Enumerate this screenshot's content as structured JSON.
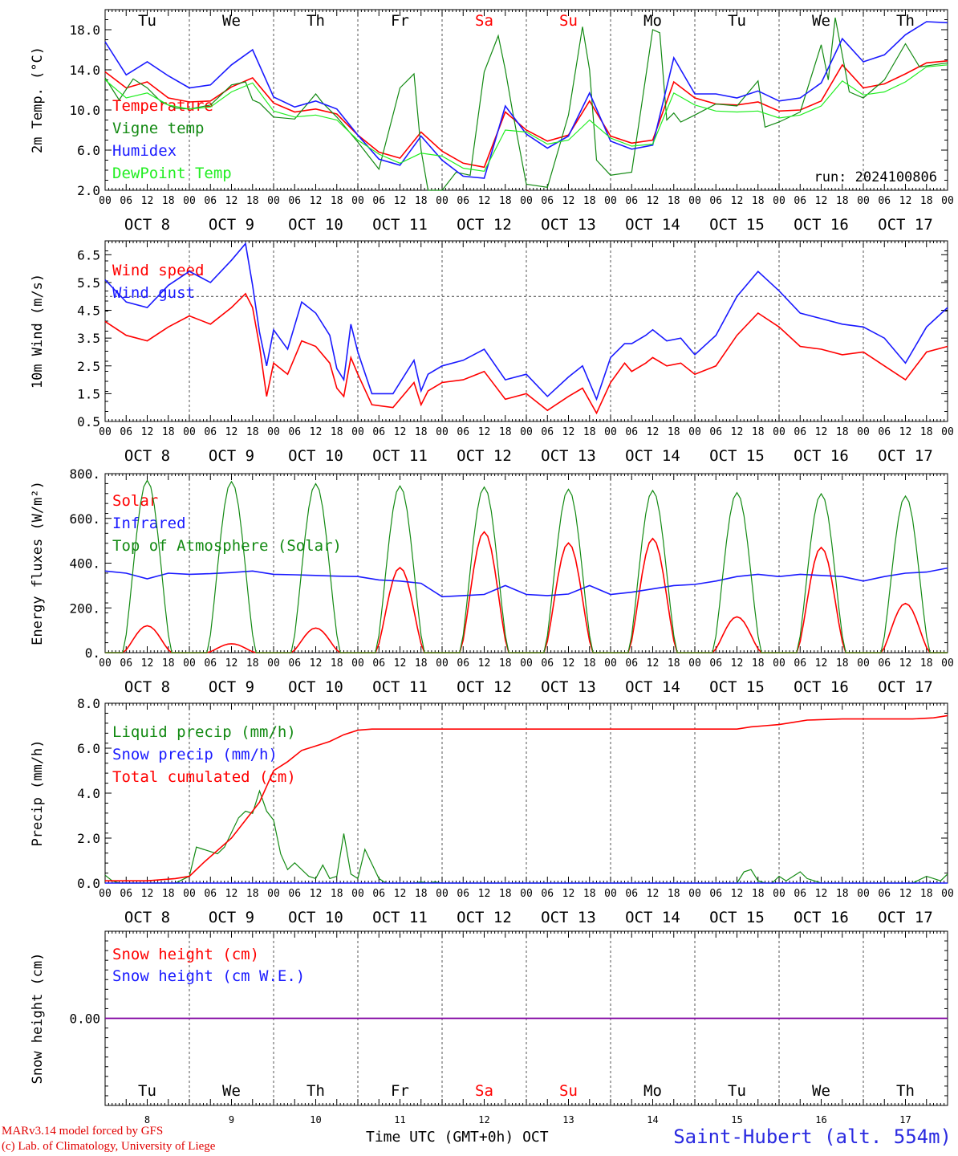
{
  "station": "Saint-Hubert (alt. 554m)",
  "run_label": "run: 2024100806",
  "footer": {
    "line1": "MARv3.14 model forced by GFS",
    "line2": "(c) Lab. of Climatology, University of Liege"
  },
  "xaxis_label": "Time UTC (GMT+0h)",
  "xaxis_month": "OCT",
  "days": [
    {
      "abbr": "Tu",
      "date": "OCT  8",
      "num": "8",
      "weekend": false
    },
    {
      "abbr": "We",
      "date": "OCT  9",
      "num": "9",
      "weekend": false
    },
    {
      "abbr": "Th",
      "date": "OCT 10",
      "num": "10",
      "weekend": false
    },
    {
      "abbr": "Fr",
      "date": "OCT 11",
      "num": "11",
      "weekend": false
    },
    {
      "abbr": "Sa",
      "date": "OCT 12",
      "num": "12",
      "weekend": true
    },
    {
      "abbr": "Su",
      "date": "OCT 13",
      "num": "13",
      "weekend": true
    },
    {
      "abbr": "Mo",
      "date": "OCT 14",
      "num": "14",
      "weekend": false
    },
    {
      "abbr": "Tu",
      "date": "OCT 15",
      "num": "15",
      "weekend": false
    },
    {
      "abbr": "We",
      "date": "OCT 16",
      "num": "16",
      "weekend": false
    },
    {
      "abbr": "Th",
      "date": "OCT 17",
      "num": "17",
      "weekend": false
    }
  ],
  "hour_ticks": [
    "00",
    "06",
    "12",
    "18"
  ],
  "colors": {
    "red": "#ff0000",
    "green": "#138a13",
    "blue": "#1a1aff",
    "lightgreen": "#22ee22",
    "weekend": "#ff0000",
    "snow_line": "#8000a0"
  },
  "chart_data": [
    {
      "type": "line",
      "ylabel": "2m Temp. (°C)",
      "ylim": [
        2,
        20
      ],
      "yticks": [
        "2.0",
        "6.0",
        "10.0",
        "14.0",
        "18.0"
      ],
      "x_unit": "hours since Oct 8 00 UTC",
      "series": [
        {
          "name": "Temperature",
          "color": "red",
          "x": [
            0,
            6,
            12,
            18,
            24,
            30,
            36,
            42,
            48,
            54,
            60,
            66,
            72,
            78,
            84,
            90,
            96,
            102,
            108,
            114,
            120,
            126,
            132,
            138,
            144,
            150,
            156,
            162,
            168,
            174,
            180,
            186,
            192,
            198,
            204,
            210,
            216,
            222,
            228,
            234,
            240
          ],
          "values": [
            13.8,
            12.2,
            12.8,
            11.2,
            10.8,
            10.9,
            12.3,
            13.2,
            10.7,
            9.8,
            10.1,
            9.6,
            7.5,
            5.8,
            5.2,
            7.8,
            5.9,
            4.7,
            4.3,
            9.8,
            8.0,
            6.9,
            7.5,
            10.9,
            7.4,
            6.7,
            7.0,
            12.8,
            11.2,
            10.6,
            10.5,
            10.8,
            9.9,
            10.0,
            10.9,
            14.5,
            12.2,
            12.6,
            13.6,
            14.7,
            14.9
          ]
        },
        {
          "name": "Vigne temp",
          "color": "green",
          "x": [
            0,
            4,
            8,
            12,
            16,
            20,
            24,
            30,
            36,
            40,
            42,
            44,
            48,
            54,
            60,
            62,
            66,
            72,
            78,
            84,
            88,
            90,
            92,
            96,
            100,
            104,
            108,
            112,
            114,
            116,
            120,
            126,
            132,
            136,
            138,
            140,
            144,
            150,
            156,
            158,
            160,
            162,
            164,
            168,
            174,
            180,
            186,
            188,
            192,
            198,
            204,
            206,
            208,
            212,
            216,
            222,
            228,
            232,
            240
          ],
          "values": [
            13.2,
            11.0,
            13.1,
            12.2,
            10.8,
            10.2,
            10.1,
            10.5,
            12.5,
            12.8,
            11.0,
            10.7,
            9.3,
            9.1,
            11.6,
            10.7,
            9.3,
            6.8,
            4.1,
            12.2,
            13.6,
            6.0,
            1.9,
            2.0,
            3.8,
            3.5,
            13.8,
            17.4,
            14.0,
            10.0,
            2.6,
            2.3,
            9.5,
            18.3,
            14.0,
            5.0,
            3.5,
            3.8,
            18.0,
            17.7,
            9.0,
            9.7,
            8.8,
            9.5,
            10.6,
            10.4,
            12.9,
            8.3,
            8.8,
            9.8,
            16.5,
            13.0,
            19.2,
            11.8,
            11.2,
            13.0,
            16.6,
            14.3,
            14.7
          ]
        },
        {
          "name": "Humidex",
          "color": "blue",
          "x": [
            0,
            6,
            12,
            18,
            24,
            30,
            36,
            42,
            48,
            54,
            60,
            66,
            72,
            78,
            84,
            90,
            96,
            102,
            108,
            114,
            120,
            126,
            132,
            138,
            144,
            150,
            156,
            162,
            168,
            174,
            180,
            186,
            192,
            198,
            204,
            210,
            216,
            222,
            228,
            234,
            240
          ],
          "values": [
            16.8,
            13.5,
            14.8,
            13.4,
            12.2,
            12.5,
            14.5,
            16.0,
            11.3,
            10.3,
            10.9,
            10.1,
            7.5,
            5.1,
            4.5,
            7.4,
            5.0,
            3.4,
            3.2,
            10.4,
            7.6,
            6.2,
            7.4,
            11.7,
            6.9,
            6.1,
            6.5,
            15.2,
            11.6,
            11.6,
            11.2,
            11.9,
            10.9,
            11.2,
            12.7,
            17.1,
            14.8,
            15.5,
            17.5,
            18.8,
            18.7
          ]
        },
        {
          "name": "DewPoint Temp",
          "color": "lightgreen",
          "x": [
            0,
            6,
            12,
            18,
            24,
            30,
            36,
            42,
            48,
            54,
            60,
            66,
            72,
            78,
            84,
            90,
            96,
            102,
            108,
            114,
            120,
            126,
            132,
            138,
            144,
            150,
            156,
            162,
            168,
            174,
            180,
            186,
            192,
            198,
            204,
            210,
            216,
            222,
            228,
            234,
            240
          ],
          "values": [
            13.0,
            11.2,
            11.7,
            10.5,
            10.1,
            10.3,
            11.8,
            12.7,
            9.9,
            9.3,
            9.5,
            9.0,
            7.0,
            5.6,
            4.7,
            5.7,
            5.4,
            4.2,
            3.9,
            8.0,
            7.8,
            6.6,
            7.0,
            9.0,
            7.2,
            6.4,
            6.6,
            11.7,
            10.5,
            9.9,
            9.8,
            9.9,
            9.2,
            9.5,
            10.4,
            12.9,
            11.5,
            11.8,
            12.8,
            14.3,
            14.5
          ]
        }
      ]
    },
    {
      "type": "line",
      "ylabel": "10m Wind (m/s)",
      "ylim": [
        0.5,
        7.0
      ],
      "yticks": [
        "0.5",
        "1.5",
        "2.5",
        "3.5",
        "4.5",
        "5.5",
        "6.5"
      ],
      "reference_line": 5.0,
      "x_unit": "hours since Oct 8 00 UTC",
      "series": [
        {
          "name": "Wind speed",
          "color": "red",
          "x": [
            0,
            6,
            12,
            18,
            24,
            30,
            36,
            40,
            42,
            44,
            46,
            48,
            52,
            56,
            60,
            64,
            66,
            68,
            70,
            72,
            76,
            82,
            88,
            90,
            92,
            96,
            102,
            108,
            114,
            120,
            126,
            132,
            136,
            140,
            144,
            148,
            150,
            154,
            156,
            160,
            164,
            168,
            174,
            180,
            186,
            192,
            198,
            204,
            210,
            216,
            222,
            228,
            234,
            240
          ],
          "values": [
            4.1,
            3.6,
            3.4,
            3.9,
            4.3,
            4.0,
            4.6,
            5.1,
            4.6,
            3.2,
            1.4,
            2.6,
            2.2,
            3.4,
            3.2,
            2.6,
            1.7,
            1.4,
            2.8,
            2.2,
            1.1,
            1.0,
            1.9,
            1.1,
            1.6,
            1.9,
            2.0,
            2.3,
            1.3,
            1.5,
            0.9,
            1.4,
            1.7,
            0.8,
            1.9,
            2.6,
            2.3,
            2.6,
            2.8,
            2.5,
            2.6,
            2.2,
            2.5,
            3.6,
            4.4,
            3.9,
            3.2,
            3.1,
            2.9,
            3.0,
            2.5,
            2.0,
            3.0,
            3.2
          ]
        },
        {
          "name": "Wind gust",
          "color": "blue",
          "x": [
            0,
            6,
            12,
            18,
            24,
            30,
            36,
            40,
            42,
            44,
            46,
            48,
            52,
            56,
            60,
            64,
            66,
            68,
            70,
            72,
            76,
            82,
            88,
            90,
            92,
            96,
            102,
            108,
            114,
            120,
            126,
            132,
            136,
            140,
            144,
            148,
            150,
            154,
            156,
            160,
            164,
            168,
            174,
            180,
            186,
            192,
            198,
            204,
            210,
            216,
            222,
            228,
            234,
            240
          ],
          "values": [
            5.6,
            4.8,
            4.6,
            5.4,
            5.9,
            5.5,
            6.3,
            6.9,
            5.4,
            3.7,
            2.5,
            3.8,
            3.1,
            4.8,
            4.4,
            3.6,
            2.4,
            2.0,
            4.0,
            3.0,
            1.5,
            1.5,
            2.7,
            1.6,
            2.2,
            2.5,
            2.7,
            3.1,
            2.0,
            2.2,
            1.4,
            2.1,
            2.5,
            1.3,
            2.8,
            3.3,
            3.3,
            3.6,
            3.8,
            3.4,
            3.5,
            2.9,
            3.6,
            5.0,
            5.9,
            5.2,
            4.4,
            4.2,
            4.0,
            3.9,
            3.5,
            2.6,
            3.9,
            4.6
          ]
        }
      ]
    },
    {
      "type": "line",
      "ylabel": "Energy fluxes (W/m²)",
      "ylim": [
        0,
        800
      ],
      "yticks": [
        "0.",
        "200.",
        "400.",
        "600.",
        "800."
      ],
      "x_unit": "hours since Oct 8 00 UTC",
      "series": [
        {
          "name": "Solar",
          "color": "red",
          "peaks": [
            120,
            40,
            110,
            380,
            540,
            490,
            510,
            160,
            470,
            220
          ]
        },
        {
          "name": "Infrared",
          "color": "blue",
          "x": [
            0,
            6,
            12,
            18,
            24,
            30,
            36,
            42,
            48,
            54,
            60,
            66,
            72,
            78,
            84,
            90,
            96,
            102,
            108,
            114,
            120,
            126,
            132,
            138,
            144,
            150,
            156,
            162,
            168,
            174,
            180,
            186,
            192,
            198,
            204,
            210,
            216,
            222,
            228,
            234,
            240
          ],
          "values": [
            365,
            355,
            330,
            355,
            350,
            353,
            358,
            365,
            350,
            348,
            345,
            342,
            340,
            325,
            320,
            310,
            250,
            255,
            260,
            300,
            260,
            255,
            262,
            300,
            260,
            270,
            285,
            300,
            305,
            320,
            340,
            350,
            340,
            350,
            345,
            340,
            320,
            340,
            355,
            360,
            378
          ]
        },
        {
          "name": "Top of Atmosphere (Solar)",
          "color": "green",
          "peaks": [
            770,
            765,
            755,
            745,
            740,
            730,
            725,
            715,
            710,
            700
          ]
        }
      ]
    },
    {
      "type": "line",
      "ylabel": "Precip (mm/h)",
      "ylim": [
        0,
        8
      ],
      "yticks": [
        "0.0",
        "2.0",
        "4.0",
        "6.0",
        "8.0"
      ],
      "x_unit": "hours since Oct 8 00 UTC",
      "series": [
        {
          "name": "Liquid precip (mm/h)",
          "color": "green",
          "x": [
            0,
            2,
            4,
            20,
            24,
            26,
            28,
            32,
            34,
            38,
            40,
            42,
            44,
            46,
            48,
            50,
            52,
            54,
            58,
            60,
            62,
            64,
            66,
            68,
            70,
            72,
            74,
            78,
            80,
            88,
            90,
            92,
            94,
            96,
            100,
            110,
            130,
            170,
            180,
            182,
            184,
            186,
            188,
            190,
            192,
            194,
            196,
            198,
            200,
            204,
            230,
            234,
            238,
            240
          ],
          "values": [
            0.35,
            0.1,
            0.0,
            0.0,
            0.3,
            1.6,
            1.5,
            1.3,
            1.6,
            2.9,
            3.2,
            3.1,
            4.1,
            3.2,
            2.8,
            1.3,
            0.6,
            0.9,
            0.3,
            0.2,
            0.8,
            0.2,
            0.3,
            2.2,
            0.4,
            0.2,
            1.5,
            0.2,
            0.0,
            0.0,
            0.05,
            0.0,
            0.05,
            0.0,
            0.0,
            0.0,
            0.0,
            0.0,
            0.0,
            0.5,
            0.6,
            0.1,
            0.0,
            0.0,
            0.3,
            0.1,
            0.3,
            0.5,
            0.2,
            0.0,
            0.0,
            0.3,
            0.1,
            0.4
          ]
        },
        {
          "name": "Snow precip (mm/h)",
          "color": "blue",
          "x": [
            0,
            240
          ],
          "values": [
            0,
            0
          ]
        },
        {
          "name": "Total cumulated (cm)",
          "color": "red",
          "x": [
            0,
            12,
            20,
            24,
            28,
            36,
            44,
            48,
            52,
            56,
            60,
            64,
            68,
            72,
            76,
            80,
            84,
            90,
            180,
            184,
            188,
            192,
            196,
            200,
            210,
            220,
            230,
            236,
            240
          ],
          "values": [
            0.1,
            0.1,
            0.2,
            0.3,
            0.9,
            2.0,
            3.6,
            5.0,
            5.4,
            5.9,
            6.1,
            6.3,
            6.6,
            6.8,
            6.85,
            6.85,
            6.85,
            6.85,
            6.85,
            6.95,
            7.0,
            7.05,
            7.15,
            7.25,
            7.3,
            7.3,
            7.3,
            7.35,
            7.45
          ]
        }
      ]
    },
    {
      "type": "line",
      "ylabel": "Snow height (cm)",
      "ylim": [
        -1,
        1
      ],
      "yticks": [
        "0.00"
      ],
      "x_unit": "hours since Oct 8 00 UTC",
      "series": [
        {
          "name": "Snow height (cm)",
          "color": "red",
          "x": [
            0,
            240
          ],
          "values": [
            0,
            0
          ]
        },
        {
          "name": "Snow height (cm W.E.)",
          "color": "blue",
          "x": [
            0,
            240
          ],
          "values": [
            0,
            0
          ]
        }
      ]
    }
  ]
}
